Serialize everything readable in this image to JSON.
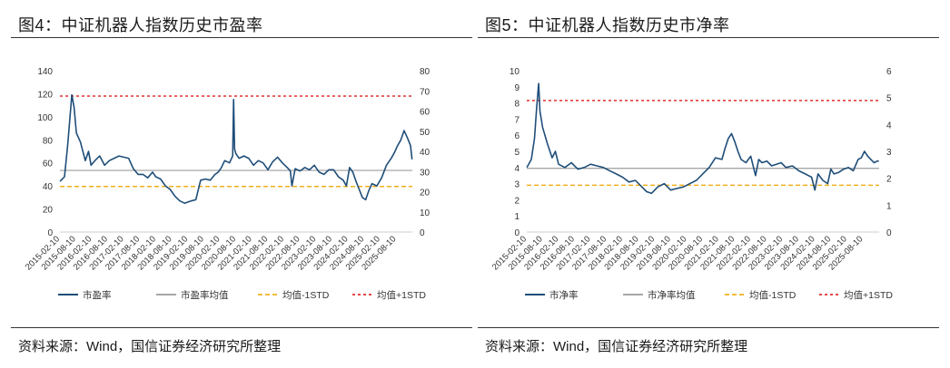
{
  "chart_data": [
    {
      "type": "line",
      "title": "图4：中证机器人指数历史市盈率",
      "source": "资料来源：Wind，国信证券经济研究所整理",
      "x_range": [
        "2015-02-10",
        "2026-02-10"
      ],
      "categories": [
        "2015-02-10",
        "2015-08-10",
        "2016-02-10",
        "2016-08-10",
        "2017-02-10",
        "2017-08-10",
        "2018-02-10",
        "2018-08-10",
        "2019-02-10",
        "2019-08-10",
        "2020-02-10",
        "2020-08-10",
        "2021-02-10",
        "2021-08-10",
        "2022-02-10",
        "2022-08-10",
        "2023-02-10",
        "2023-08-10",
        "2024-02-10",
        "2024-08-10",
        "2025-02-10",
        "2025-08-10"
      ],
      "y_left": {
        "min": 0,
        "max": 140,
        "ticks": [
          "0",
          "20",
          "40",
          "60",
          "80",
          "100",
          "120",
          "140"
        ]
      },
      "y_right": {
        "min": 0,
        "max": 80,
        "ticks": [
          "0",
          "10",
          "20",
          "30",
          "40",
          "50",
          "60",
          "70",
          "80"
        ]
      },
      "series": [
        {
          "name": "市盈率",
          "color": "#1f4e79",
          "style": "solid",
          "x": [
            2015.11,
            2015.25,
            2015.35,
            2015.42,
            2015.48,
            2015.55,
            2015.62,
            2015.75,
            2015.9,
            2016.0,
            2016.08,
            2016.2,
            2016.35,
            2016.5,
            2016.65,
            2016.8,
            2016.95,
            2017.1,
            2017.25,
            2017.4,
            2017.55,
            2017.7,
            2017.85,
            2018.0,
            2018.1,
            2018.25,
            2018.4,
            2018.55,
            2018.7,
            2018.85,
            2019.0,
            2019.1,
            2019.2,
            2019.35,
            2019.5,
            2019.65,
            2019.8,
            2019.95,
            2020.05,
            2020.15,
            2020.25,
            2020.4,
            2020.5,
            2020.53,
            2020.56,
            2020.6,
            2020.7,
            2020.85,
            2021.0,
            2021.15,
            2021.3,
            2021.45,
            2021.6,
            2021.75,
            2021.9,
            2022.05,
            2022.2,
            2022.3,
            2022.35,
            2022.45,
            2022.6,
            2022.75,
            2022.9,
            2023.05,
            2023.2,
            2023.35,
            2023.5,
            2023.65,
            2023.8,
            2023.95,
            2024.05,
            2024.15,
            2024.25,
            2024.35,
            2024.45,
            2024.55,
            2024.65,
            2024.75,
            2024.85,
            2025.0,
            2025.15,
            2025.3,
            2025.45,
            2025.55,
            2025.65,
            2025.75,
            2025.85,
            2025.95,
            2026.05,
            2026.1
          ],
          "values": [
            44,
            48,
            75,
            99,
            119,
            108,
            86,
            78,
            62,
            70,
            58,
            62,
            66,
            58,
            62,
            64,
            66,
            65,
            64,
            55,
            50,
            50,
            47,
            52,
            48,
            46,
            40,
            37,
            31,
            27,
            25,
            26,
            27,
            28,
            45,
            46,
            45,
            50,
            52,
            56,
            62,
            60,
            66,
            115,
            72,
            68,
            64,
            66,
            64,
            58,
            62,
            60,
            54,
            61,
            65,
            60,
            56,
            53,
            40,
            55,
            53,
            56,
            54,
            58,
            52,
            50,
            54,
            54,
            48,
            45,
            40,
            56,
            52,
            44,
            37,
            30,
            28,
            36,
            42,
            40,
            47,
            58,
            64,
            69,
            75,
            80,
            88,
            82,
            75,
            63
          ]
        },
        {
          "name": "市盈率均值",
          "color": "#a6a6a6",
          "style": "solid",
          "value": 53.5
        },
        {
          "name": "均值-1STD",
          "color": "#f2b01e",
          "style": "dashed",
          "value": 39.5
        },
        {
          "name": "均值+1STD",
          "color": "#e0312e",
          "style": "dotted",
          "value": 118
        }
      ]
    },
    {
      "type": "line",
      "title": "图5：中证机器人指数历史市净率",
      "source": "资料来源：Wind，国信证券经济研究所整理",
      "x_range": [
        "2015-02-10",
        "2026-02-10"
      ],
      "categories": [
        "2015-02-10",
        "2015-08-10",
        "2016-02-10",
        "2016-08-10",
        "2017-02-10",
        "2017-08-10",
        "2018-02-10",
        "2018-08-10",
        "2019-02-10",
        "2019-08-10",
        "2020-02-10",
        "2020-08-10",
        "2021-02-10",
        "2021-08-10",
        "2022-02-10",
        "2022-08-10",
        "2023-02-10",
        "2023-08-10",
        "2024-02-10",
        "2024-08-10",
        "2025-02-10",
        "2025-08-10"
      ],
      "y_left": {
        "min": 0,
        "max": 10,
        "ticks": [
          "0",
          "1",
          "2",
          "3",
          "4",
          "5",
          "6",
          "7",
          "8",
          "9",
          "10"
        ]
      },
      "y_right": {
        "min": 0,
        "max": 6,
        "ticks": [
          "0",
          "1",
          "2",
          "3",
          "4",
          "5",
          "6"
        ]
      },
      "series": [
        {
          "name": "市净率",
          "color": "#1f4e79",
          "style": "solid",
          "x": [
            2015.11,
            2015.25,
            2015.35,
            2015.42,
            2015.48,
            2015.52,
            2015.6,
            2015.75,
            2015.9,
            2016.0,
            2016.1,
            2016.3,
            2016.5,
            2016.7,
            2016.9,
            2017.1,
            2017.3,
            2017.5,
            2017.7,
            2017.9,
            2018.1,
            2018.3,
            2018.5,
            2018.7,
            2018.85,
            2019.0,
            2019.2,
            2019.4,
            2019.6,
            2019.8,
            2020.0,
            2020.2,
            2020.4,
            2020.6,
            2020.8,
            2021.0,
            2021.2,
            2021.3,
            2021.4,
            2021.5,
            2021.6,
            2021.7,
            2021.8,
            2021.95,
            2022.1,
            2022.25,
            2022.35,
            2022.45,
            2022.6,
            2022.75,
            2022.9,
            2023.05,
            2023.2,
            2023.4,
            2023.6,
            2023.8,
            2024.0,
            2024.1,
            2024.2,
            2024.35,
            2024.5,
            2024.6,
            2024.7,
            2024.85,
            2025.0,
            2025.15,
            2025.3,
            2025.45,
            2025.55,
            2025.65,
            2025.75,
            2025.85,
            2025.95,
            2026.05,
            2026.1
          ],
          "values": [
            4.0,
            4.5,
            5.8,
            7.8,
            9.2,
            7.5,
            6.5,
            5.5,
            4.6,
            5.0,
            4.2,
            4.0,
            4.3,
            3.9,
            4.0,
            4.2,
            4.1,
            4.0,
            3.8,
            3.6,
            3.4,
            3.1,
            3.2,
            2.8,
            2.5,
            2.4,
            2.8,
            3.0,
            2.6,
            2.7,
            2.8,
            3.0,
            3.2,
            3.6,
            4.0,
            4.6,
            4.5,
            5.2,
            5.8,
            6.1,
            5.6,
            5.0,
            4.5,
            4.3,
            4.7,
            3.5,
            4.5,
            4.3,
            4.4,
            4.1,
            4.2,
            4.3,
            4.0,
            4.1,
            3.8,
            3.6,
            3.4,
            2.6,
            3.6,
            3.2,
            3.0,
            3.9,
            3.6,
            3.7,
            3.9,
            4.0,
            3.8,
            4.5,
            4.6,
            5.0,
            4.7,
            4.5,
            4.3,
            4.4,
            4.4
          ]
        },
        {
          "name": "市净率均值",
          "color": "#a6a6a6",
          "style": "solid",
          "value": 3.95
        },
        {
          "name": "均值-1STD",
          "color": "#f2b01e",
          "style": "dashed",
          "value": 2.9
        },
        {
          "name": "均值+1STD",
          "color": "#e0312e",
          "style": "dotted",
          "value": 8.15
        }
      ]
    }
  ]
}
